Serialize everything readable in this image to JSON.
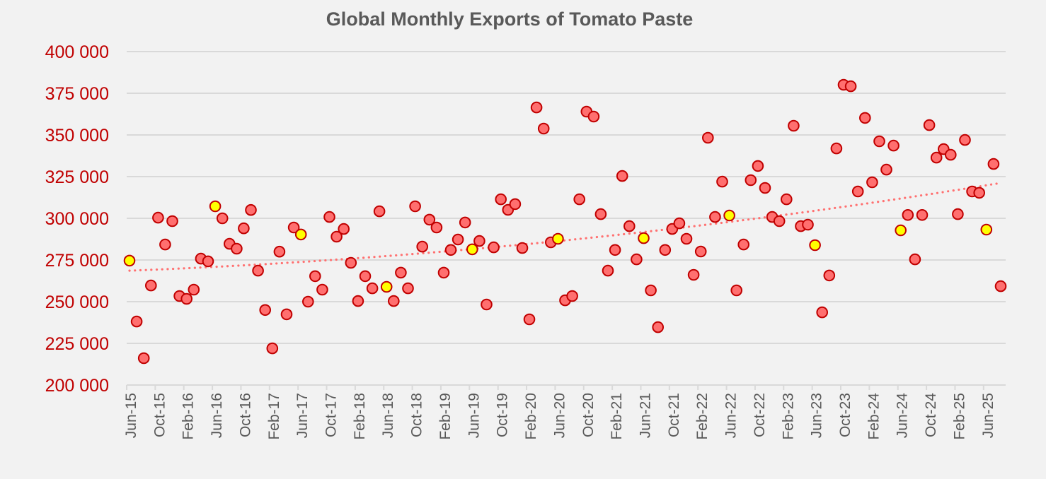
{
  "chart_data": {
    "type": "scatter",
    "title": "Global Monthly Exports of Tomato Paste",
    "xlabel": "",
    "ylabel": "",
    "ylim": [
      200000,
      400000
    ],
    "yticks": [
      200000,
      225000,
      250000,
      275000,
      300000,
      325000,
      350000,
      375000,
      400000
    ],
    "ytick_labels": [
      "200 000",
      "225 000",
      "250 000",
      "275 000",
      "300 000",
      "325 000",
      "350 000",
      "375 000",
      "400 000"
    ],
    "x_start": "Jun-15",
    "x_end": "Aug-25",
    "xtick_labels": [
      "Jun-15",
      "Oct-15",
      "Feb-16",
      "Jun-16",
      "Oct-16",
      "Feb-17",
      "Jun-17",
      "Oct-17",
      "Feb-18",
      "Jun-18",
      "Oct-18",
      "Feb-19",
      "Jun-19",
      "Oct-19",
      "Feb-20",
      "Jun-20",
      "Oct-20",
      "Feb-21",
      "Jun-21",
      "Oct-21",
      "Feb-22",
      "Jun-22",
      "Oct-22",
      "Feb-23",
      "Jun-23",
      "Oct-23",
      "Feb-24",
      "Jun-24",
      "Oct-24",
      "Feb-25",
      "Jun-25"
    ],
    "xtick_interval_months": 4,
    "grid": true,
    "legend": "none",
    "highlight_rule": "June of each year shown in yellow",
    "colors": {
      "point_fill": "#ff6f6f",
      "point_stroke": "#c00000",
      "highlight_fill": "#ffff00",
      "trendline": "#ff7171",
      "ytick_text": "#c00000",
      "xtick_text": "#595959",
      "title_text": "#595959"
    },
    "series": [
      {
        "name": "Monthly exports",
        "values": [
          274600,
          238100,
          216100,
          259700,
          300400,
          284300,
          298300,
          253400,
          251700,
          257200,
          275800,
          274200,
          307200,
          300000,
          284700,
          281800,
          294000,
          305000,
          268600,
          245000,
          222000,
          280000,
          242400,
          294500,
          290300,
          250000,
          265300,
          257200,
          300800,
          289000,
          293600,
          273300,
          250400,
          265300,
          258000,
          304200,
          258900,
          250400,
          267400,
          258000,
          307200,
          283000,
          299200,
          294500,
          267400,
          281000,
          287300,
          297500,
          281400,
          286400,
          248300,
          282600,
          311400,
          305100,
          308500,
          282200,
          239400,
          366500,
          353800,
          285600,
          287700,
          250800,
          253400,
          311400,
          364000,
          361000,
          302500,
          268600,
          281000,
          325400,
          295300,
          275400,
          288100,
          256800,
          234700,
          281000,
          293600,
          297000,
          287700,
          266100,
          280100,
          348300,
          300800,
          322000,
          301700,
          256800,
          284300,
          322900,
          331400,
          318200,
          300800,
          298300,
          311400,
          355500,
          295300,
          296200,
          283900,
          243600,
          265700,
          341900,
          380100,
          379200,
          316100,
          360200,
          321600,
          346200,
          329200,
          343600,
          292800,
          302000,
          275400,
          302000,
          355900,
          336400,
          341500,
          338100,
          302500,
          347000,
          316100,
          315300,
          293200,
          332600,
          259300
        ]
      }
    ],
    "trendline": {
      "type": "polynomial",
      "style": "dotted",
      "start_value": 268600,
      "end_value": 321200
    }
  }
}
